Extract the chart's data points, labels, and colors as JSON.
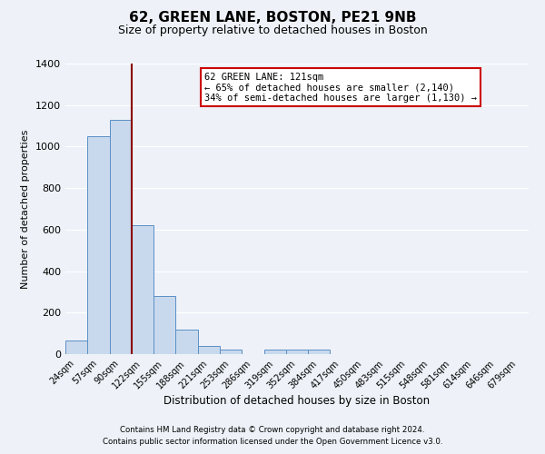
{
  "title": "62, GREEN LANE, BOSTON, PE21 9NB",
  "subtitle": "Size of property relative to detached houses in Boston",
  "xlabel": "Distribution of detached houses by size in Boston",
  "ylabel": "Number of detached properties",
  "bar_labels": [
    "24sqm",
    "57sqm",
    "90sqm",
    "122sqm",
    "155sqm",
    "188sqm",
    "221sqm",
    "253sqm",
    "286sqm",
    "319sqm",
    "352sqm",
    "384sqm",
    "417sqm",
    "450sqm",
    "483sqm",
    "515sqm",
    "548sqm",
    "581sqm",
    "614sqm",
    "646sqm",
    "679sqm"
  ],
  "bar_values": [
    65,
    1050,
    1130,
    620,
    280,
    120,
    40,
    20,
    0,
    20,
    20,
    20,
    0,
    0,
    0,
    0,
    0,
    0,
    0,
    0,
    0
  ],
  "bar_color": "#c9d9ed",
  "bar_edge_color": "#5b8fc5",
  "ylim": [
    0,
    1400
  ],
  "yticks": [
    0,
    200,
    400,
    600,
    800,
    1000,
    1200,
    1400
  ],
  "vline_color": "#8b0000",
  "annotation_title": "62 GREEN LANE: 121sqm",
  "annotation_line1": "← 65% of detached houses are smaller (2,140)",
  "annotation_line2": "34% of semi-detached houses are larger (1,130) →",
  "annotation_box_color": "#ffffff",
  "annotation_box_edge": "#cc0000",
  "footer1": "Contains HM Land Registry data © Crown copyright and database right 2024.",
  "footer2": "Contains public sector information licensed under the Open Government Licence v3.0.",
  "bg_color": "#eef2f8",
  "grid_color": "#ffffff"
}
